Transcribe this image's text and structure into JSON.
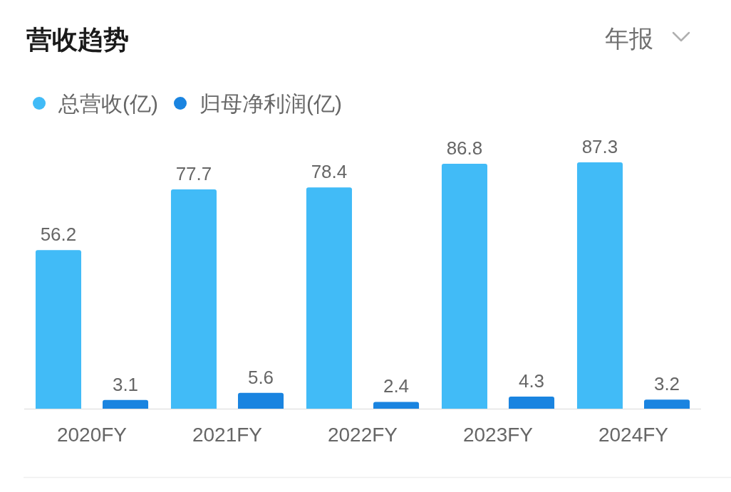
{
  "chart_data": {
    "type": "bar",
    "title": "营收趋势",
    "annotations": [
      "年报"
    ],
    "categories": [
      "2020FY",
      "2021FY",
      "2022FY",
      "2023FY",
      "2024FY"
    ],
    "series": [
      {
        "name": "总营收(亿)",
        "color": "#41bbf7",
        "values": [
          56.2,
          77.7,
          78.4,
          86.8,
          87.3
        ]
      },
      {
        "name": "归母净利润(亿)",
        "color": "#1a84e0",
        "values": [
          3.1,
          5.6,
          2.4,
          4.3,
          3.2
        ]
      }
    ],
    "data_labels": true,
    "legend": "top left"
  }
}
